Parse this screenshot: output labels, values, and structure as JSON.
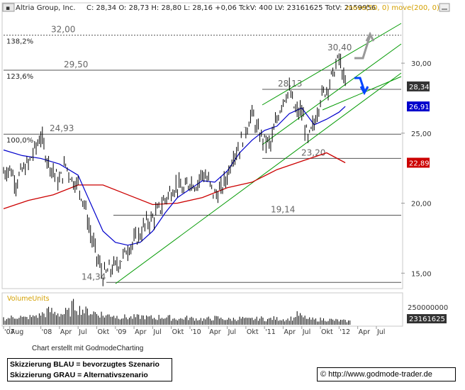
{
  "header": {
    "title": "Altria Group, Inc.",
    "quote": "C: 28,34 O: 28,73 H: 28,80 L: 28,16 +0,06 TckV: 400 LV: 23161625 TotV: 2159956",
    "ma_legend": "move(50, 0) move(200, 0)"
  },
  "chart_data": {
    "type": "line",
    "title": "Altria Group, Inc.",
    "subpanel_label": "VolumeUnits",
    "y_ticks": [
      "30,00",
      "25,00",
      "20,00",
      "15,00"
    ],
    "x_ticks": [
      "'07",
      "Aug",
      "'08",
      "Apr",
      "Jul",
      "Okt",
      "'09",
      "Apr",
      "Jul",
      "Okt",
      "'10",
      "Apr",
      "Jul",
      "Okt",
      "'11",
      "Apr",
      "Jul",
      "Okt",
      "'12",
      "Apr",
      "Jul"
    ],
    "x_tick_months": [
      0,
      1,
      6,
      9,
      12,
      15,
      18,
      21,
      24,
      27,
      30,
      33,
      36,
      39,
      42,
      45,
      48,
      51,
      54,
      57,
      60
    ],
    "ylim": [
      14.0,
      33.5
    ],
    "levels": [
      {
        "label": "32,00",
        "value": 32.0,
        "fib": "138,2%"
      },
      {
        "label": "29,50",
        "value": 29.5,
        "fib": "123,6%"
      },
      {
        "label": "24,93",
        "value": 24.93,
        "fib": "100,0%"
      },
      {
        "label": "28,13",
        "value": 28.13,
        "fib": ""
      },
      {
        "label": "23,20",
        "value": 23.2,
        "fib": ""
      },
      {
        "label": "19,14",
        "value": 19.14,
        "fib": ""
      },
      {
        "label": "14,34",
        "value": 14.34,
        "fib": ""
      }
    ],
    "annotation_peak": {
      "label": "30,40",
      "value": 30.4
    },
    "price_tags": [
      {
        "label": "28,34",
        "value": 28.34,
        "color": "#333333"
      },
      {
        "label": "26,91",
        "value": 26.91,
        "color": "#0000cc"
      },
      {
        "label": "22,89",
        "value": 22.89,
        "color": "#cc0000"
      }
    ],
    "volume_tags": [
      "250000000",
      "23161625"
    ],
    "price_points": [
      [
        0,
        22.2
      ],
      [
        1,
        22.5
      ],
      [
        2,
        21.5
      ],
      [
        3,
        22.3
      ],
      [
        4,
        22.8
      ],
      [
        5,
        23.8
      ],
      [
        6,
        24.8
      ],
      [
        7,
        23.2
      ],
      [
        8,
        22.3
      ],
      [
        9,
        21.5
      ],
      [
        10,
        22.8
      ],
      [
        11,
        21.7
      ],
      [
        12,
        21.3
      ],
      [
        13,
        20.0
      ],
      [
        14,
        17.8
      ],
      [
        15,
        16.2
      ],
      [
        16,
        14.8
      ],
      [
        17,
        15.2
      ],
      [
        18,
        15.5
      ],
      [
        19,
        16.0
      ],
      [
        20,
        16.8
      ],
      [
        21,
        17.2
      ],
      [
        22,
        17.8
      ],
      [
        23,
        18.6
      ],
      [
        24,
        18.9
      ],
      [
        25,
        19.5
      ],
      [
        26,
        20.3
      ],
      [
        27,
        20.9
      ],
      [
        28,
        21.3
      ],
      [
        29,
        20.8
      ],
      [
        30,
        21.6
      ],
      [
        31,
        21.3
      ],
      [
        32,
        22.2
      ],
      [
        33,
        21.5
      ],
      [
        34,
        20.6
      ],
      [
        35,
        20.9
      ],
      [
        36,
        22.0
      ],
      [
        37,
        23.5
      ],
      [
        38,
        24.0
      ],
      [
        39,
        25.3
      ],
      [
        40,
        26.4
      ],
      [
        41,
        25.0
      ],
      [
        42,
        24.5
      ],
      [
        43,
        24.2
      ],
      [
        44,
        26.0
      ],
      [
        45,
        27.5
      ],
      [
        46,
        28.0
      ],
      [
        47,
        26.5
      ],
      [
        48,
        26.5
      ],
      [
        49,
        24.5
      ],
      [
        50,
        25.7
      ],
      [
        51,
        27.5
      ],
      [
        52,
        28.2
      ],
      [
        53,
        29.2
      ],
      [
        54,
        30.4
      ],
      [
        55,
        28.34
      ]
    ],
    "ma50_points": [
      [
        0,
        23.8
      ],
      [
        3,
        23.4
      ],
      [
        6,
        23.2
      ],
      [
        9,
        22.8
      ],
      [
        12,
        22.0
      ],
      [
        14,
        20.0
      ],
      [
        16,
        18.0
      ],
      [
        18,
        17.2
      ],
      [
        20,
        17.0
      ],
      [
        22,
        17.2
      ],
      [
        24,
        18.0
      ],
      [
        26,
        19.3
      ],
      [
        28,
        20.4
      ],
      [
        30,
        21.0
      ],
      [
        32,
        21.6
      ],
      [
        34,
        21.5
      ],
      [
        36,
        22.3
      ],
      [
        38,
        23.6
      ],
      [
        40,
        24.5
      ],
      [
        42,
        25.2
      ],
      [
        44,
        25.5
      ],
      [
        46,
        26.4
      ],
      [
        48,
        26.8
      ],
      [
        50,
        25.6
      ],
      [
        52,
        26.0
      ],
      [
        54,
        26.5
      ],
      [
        55,
        26.91
      ]
    ],
    "ma200_points": [
      [
        0,
        19.6
      ],
      [
        4,
        20.2
      ],
      [
        8,
        20.6
      ],
      [
        12,
        21.3
      ],
      [
        16,
        21.3
      ],
      [
        20,
        20.6
      ],
      [
        24,
        19.9
      ],
      [
        28,
        20.0
      ],
      [
        32,
        20.4
      ],
      [
        36,
        21.1
      ],
      [
        40,
        21.5
      ],
      [
        44,
        22.4
      ],
      [
        48,
        23.0
      ],
      [
        52,
        23.6
      ],
      [
        55,
        22.89
      ]
    ],
    "volume": [
      14,
      16,
      18,
      15,
      17,
      20,
      24,
      30,
      26,
      24,
      28,
      42,
      34,
      30,
      27,
      24,
      20,
      22,
      18,
      17,
      16,
      17,
      18,
      16,
      15,
      17,
      16,
      14,
      13,
      15,
      14,
      13,
      12,
      14,
      15,
      13,
      12,
      13,
      14,
      12,
      13,
      14,
      12,
      14,
      13,
      12,
      14,
      22,
      16,
      12,
      11,
      12,
      11,
      10,
      9,
      8
    ]
  },
  "scenario_legend": {
    "blue": "Skizzierung BLAU = bevorzugtes Szenario",
    "grey": "Skizzierung GRAU = Alternativszenario"
  },
  "credit": "Chart erstellt mit GodmodeCharting",
  "url": "© http://www.godmode-trader.de",
  "colors": {
    "price": "#000000",
    "ma50": "#0000cc",
    "ma200": "#cc0000",
    "trend": "#009900",
    "level": "#555555",
    "blue_scenario": "#0044ff",
    "grey_scenario": "#999999"
  }
}
